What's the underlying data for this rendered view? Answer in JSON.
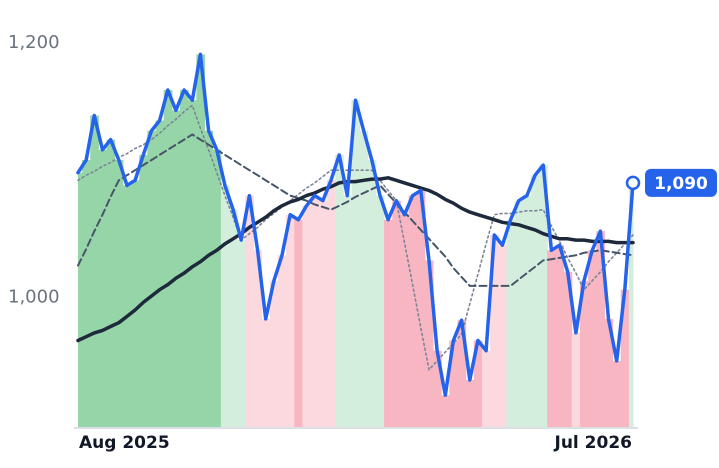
{
  "chart_data": {
    "type": "line",
    "categories": [
      "Aug 2025",
      null,
      null,
      null,
      null,
      null,
      null,
      null,
      null,
      null,
      null,
      null,
      null,
      null,
      null,
      null,
      null,
      null,
      null,
      null,
      null,
      null,
      null,
      null,
      null,
      null,
      null,
      null,
      null,
      null,
      null,
      null,
      null,
      null,
      null,
      null,
      null,
      null,
      null,
      null,
      null,
      null,
      null,
      null,
      null,
      null,
      null,
      null,
      null,
      null,
      null,
      null,
      null,
      null,
      null,
      null,
      null,
      null,
      null,
      null,
      null,
      null,
      null,
      null,
      null,
      null,
      null,
      null,
      "Jul 2026"
    ],
    "series": [
      {
        "color": "#2563eb",
        "values": [
          1098,
          1108,
          1143,
          1116,
          1124,
          1108,
          1088,
          1092,
          1112,
          1131,
          1139,
          1163,
          1147,
          1163,
          1155,
          1191,
          1131,
          1116,
          1088,
          1069,
          1045,
          1080,
          1037,
          983,
          1013,
          1033,
          1065,
          1061,
          1072,
          1080,
          1076,
          1092,
          1112,
          1080,
          1155,
          1131,
          1108,
          1080,
          1061,
          1076,
          1065,
          1080,
          1084,
          1029,
          958,
          923,
          966,
          982,
          935,
          966,
          958,
          1049,
          1041,
          1061,
          1076,
          1080,
          1096,
          1104,
          1037,
          1041,
          1020,
          972,
          1013,
          1037,
          1052,
          983,
          950,
          1006,
          1090
        ]
      },
      {
        "color": "#1e293b",
        "values": [
          966,
          969,
          972,
          974,
          977,
          980,
          985,
          990,
          996,
          1001,
          1006,
          1010,
          1015,
          1019,
          1024,
          1028,
          1033,
          1037,
          1042,
          1046,
          1050,
          1055,
          1059,
          1063,
          1068,
          1072,
          1075,
          1077,
          1080,
          1082,
          1085,
          1087,
          1090,
          1091,
          1091,
          1092,
          1093,
          1093,
          1094,
          1092,
          1090,
          1088,
          1086,
          1084,
          1081,
          1077,
          1074,
          1070,
          1067,
          1065,
          1063,
          1061,
          1059,
          1058,
          1057,
          1055,
          1053,
          1050,
          1048,
          1046,
          1046,
          1045,
          1045,
          1044,
          1044,
          1044,
          1043,
          1043,
          1043
        ]
      },
      {
        "color": "#475569",
        "values": [
          1025,
          1038,
          1052,
          1065,
          1079,
          1092,
          1096,
          1100,
          1104,
          1108,
          1112,
          1116,
          1120,
          1124,
          1128,
          1124,
          1120,
          1116,
          1112,
          1108,
          1104,
          1100,
          1096,
          1092,
          1088,
          1084,
          1080,
          1078,
          1076,
          1073,
          1071,
          1069,
          1072,
          1075,
          1079,
          1082,
          1085,
          1088,
          1081,
          1074,
          1067,
          1060,
          1053,
          1046,
          1039,
          1032,
          1023,
          1016,
          1009,
          1009,
          1009,
          1009,
          1009,
          1009,
          1014,
          1019,
          1024,
          1029,
          1030,
          1031,
          1032,
          1033,
          1035,
          1036,
          1037,
          1036,
          1035,
          1034,
          1033
        ]
      },
      {
        "color": "#7c8596",
        "values": [
          1092,
          1096,
          1099,
          1103,
          1106,
          1110,
          1113,
          1117,
          1120,
          1124,
          1129,
          1135,
          1140,
          1146,
          1151,
          1133,
          1116,
          1098,
          1080,
          1063,
          1045,
          1050,
          1055,
          1061,
          1066,
          1071,
          1076,
          1081,
          1086,
          1090,
          1095,
          1100,
          1100,
          1100,
          1100,
          1100,
          1100,
          1092,
          1084,
          1076,
          1043,
          1010,
          976,
          943,
          950,
          957,
          964,
          971,
          995,
          1018,
          1042,
          1065,
          1066,
          1066,
          1067,
          1068,
          1068,
          1069,
          1056,
          1044,
          1031,
          1019,
          1006,
          1013,
          1020,
          1028,
          1035,
          1042,
          1049
        ]
      }
    ],
    "band_colors": [
      "#95d5a8",
      "#95d5a8",
      "#95d5a8",
      "#95d5a8",
      "#95d5a8",
      "#95d5a8",
      "#95d5a8",
      "#95d5a8",
      "#95d5a8",
      "#95d5a8",
      "#95d5a8",
      "#95d5a8",
      "#95d5a8",
      "#95d5a8",
      "#95d5a8",
      "#95d5a8",
      "#95d5a8",
      "#95d5a8",
      "#d3eedd",
      "#d3eedd",
      "#d3eedd",
      "#fcd9df",
      "#fcd9df",
      "#fcd9df",
      "#fcd9df",
      "#fcd9df",
      "#fcd9df",
      "#f8b6c3",
      "#fcd9df",
      "#fcd9df",
      "#fcd9df",
      "#fcd9df",
      "#d3eedd",
      "#d3eedd",
      "#d3eedd",
      "#d3eedd",
      "#d3eedd",
      "#d3eedd",
      "#f8b6c3",
      "#f8b6c3",
      "#f8b6c3",
      "#f8b6c3",
      "#f8b6c3",
      "#f8b6c3",
      "#f8b6c3",
      "#f8b6c3",
      "#f8b6c3",
      "#f8b6c3",
      "#f8b6c3",
      "#f8b6c3",
      "#fcd9df",
      "#fcd9df",
      "#fcd9df",
      "#d3eedd",
      "#d3eedd",
      "#d3eedd",
      "#d3eedd",
      "#d3eedd",
      "#f8b6c3",
      "#f8b6c3",
      "#f8b6c3",
      "#fcd9df",
      "#f8b6c3",
      "#f8b6c3",
      "#f8b6c3",
      "#f8b6c3",
      "#f8b6c3",
      "#f8b6c3",
      "#d3eedd"
    ],
    "last_value_label": "1,090",
    "ylim": [
      898,
      1200
    ],
    "yticks": [
      {
        "value": 1000,
        "label": "1,000"
      },
      {
        "value": 1200,
        "label": "1,200"
      }
    ]
  }
}
